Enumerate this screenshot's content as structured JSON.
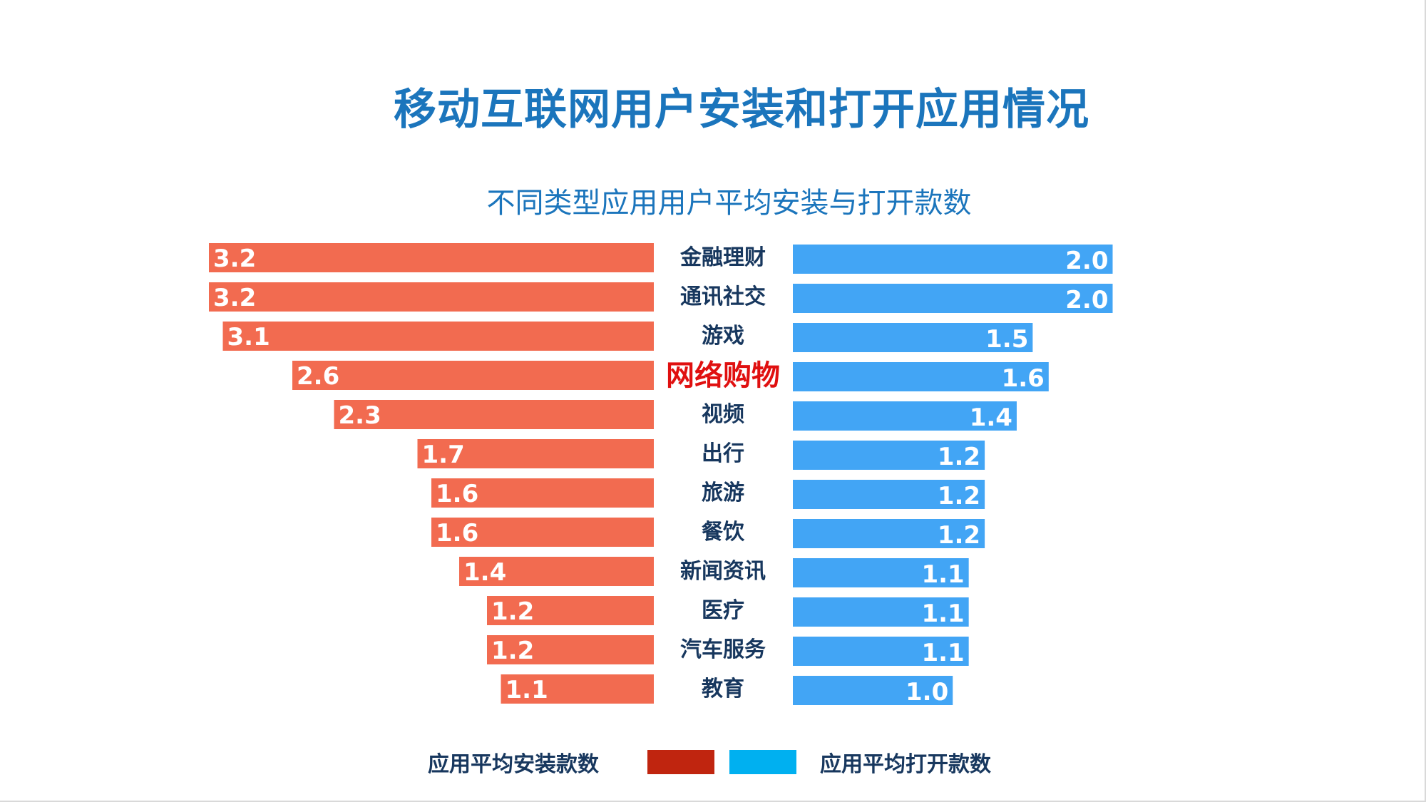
{
  "title": "移动互联网用户安装和打开应用情况",
  "chart_data": {
    "type": "bar",
    "title": "不同类型应用用户平均安装与打开款数",
    "categories": [
      "金融理财",
      "通讯社交",
      "游戏",
      "网络购物",
      "视频",
      "出行",
      "旅游",
      "餐饮",
      "新闻资讯",
      "医疗",
      "汽车服务",
      "教育"
    ],
    "highlight_category": "网络购物",
    "series": [
      {
        "name": "应用平均安装款数",
        "values": [
          3.2,
          3.2,
          3.1,
          2.6,
          2.3,
          1.7,
          1.6,
          1.6,
          1.4,
          1.2,
          1.2,
          1.1
        ],
        "color": "#f26b50"
      },
      {
        "name": "应用平均打开款数",
        "values": [
          2.0,
          2.0,
          1.5,
          1.6,
          1.4,
          1.2,
          1.2,
          1.2,
          1.1,
          1.1,
          1.1,
          1.0
        ],
        "color": "#42a5f5"
      }
    ],
    "legend": {
      "position": "bottom",
      "swatch_colors": [
        "#c0250f",
        "#00b0f0"
      ]
    },
    "colors": {
      "highlight_label": "#e01010",
      "category_label": "#17375e",
      "title": "#1b75bc"
    }
  }
}
